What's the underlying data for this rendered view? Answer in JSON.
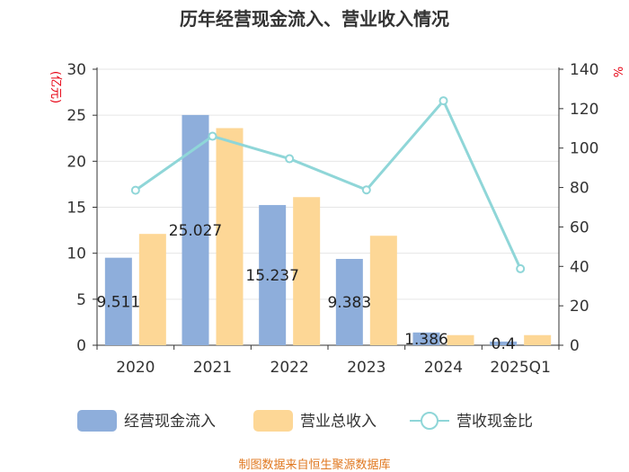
{
  "chart_data": {
    "type": "bar",
    "title": "历年经营现金流入、营业收入情况",
    "categories": [
      "2020",
      "2021",
      "2022",
      "2023",
      "2024",
      "2025Q1"
    ],
    "series": [
      {
        "name": "经营现金流入",
        "type": "bar",
        "axis": "left",
        "color": "#8eaedb",
        "values": [
          9.511,
          25.027,
          15.237,
          9.383,
          1.386,
          0.4
        ],
        "labels": [
          "9.511",
          "25.027",
          "15.237",
          "9.383",
          "1.386",
          "0.4"
        ]
      },
      {
        "name": "营业总收入",
        "type": "bar",
        "axis": "left",
        "color": "#fdd796",
        "values": [
          12.1,
          23.6,
          16.1,
          11.9,
          1.1,
          1.1
        ]
      },
      {
        "name": "营收现金比",
        "type": "line",
        "axis": "right",
        "color": "#8fd6d8",
        "values": [
          78.6,
          106.0,
          94.6,
          78.8,
          124.0,
          38.8
        ]
      }
    ],
    "yleft": {
      "label": "(亿元)",
      "min": 0,
      "max": 30,
      "ticks": [
        0,
        5,
        10,
        15,
        20,
        25,
        30
      ]
    },
    "yright": {
      "label": "%",
      "min": 0,
      "max": 140,
      "ticks": [
        0,
        20,
        40,
        60,
        80,
        100,
        120,
        140
      ]
    },
    "grid": true,
    "legend_position": "bottom"
  },
  "source": "制图数据来自恒生聚源数据库"
}
